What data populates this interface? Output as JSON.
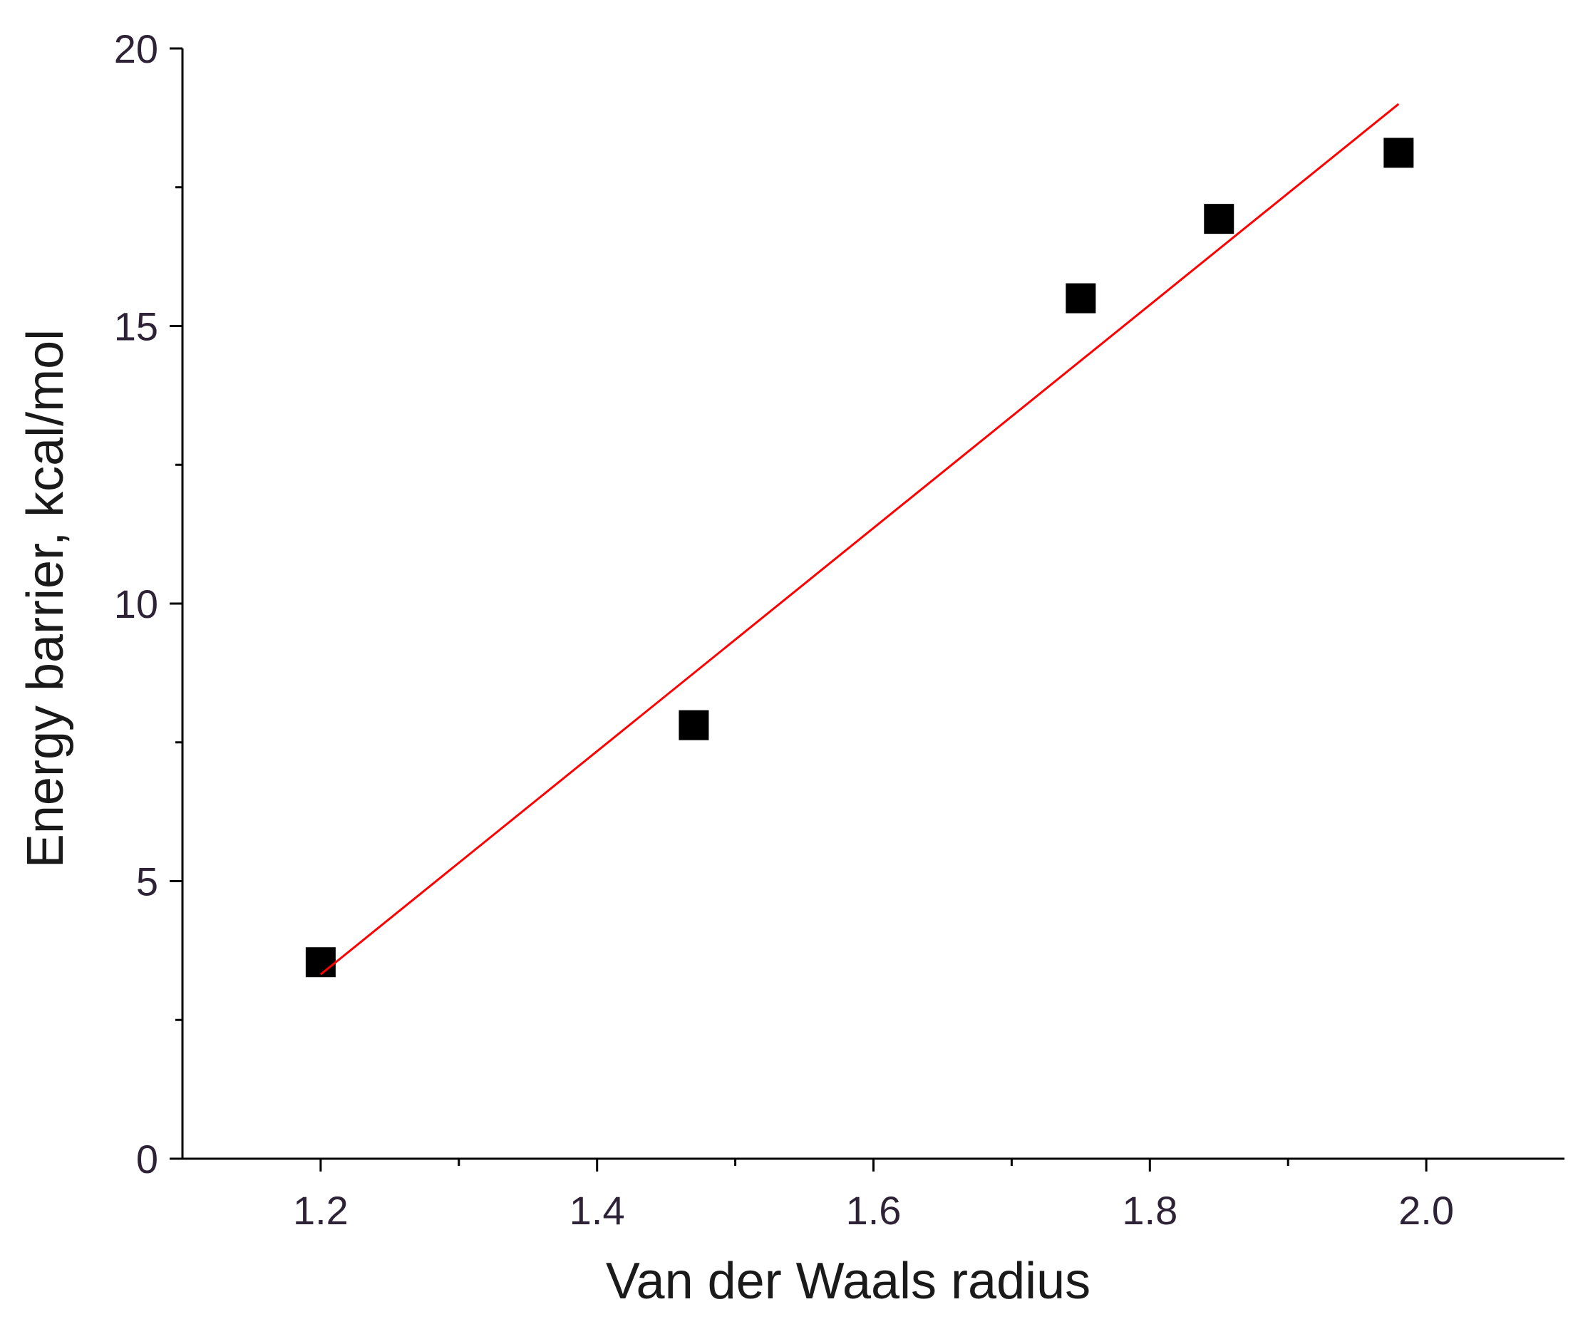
{
  "chart_data": {
    "type": "scatter",
    "x_label": "Van der Waals radius",
    "y_label": "Energy barrier, kcal/mol",
    "xlim": [
      1.1,
      2.1
    ],
    "xticks": [
      1.2,
      1.4,
      1.6,
      1.8,
      {
        "value": 2,
        "label": "2.0"
      }
    ],
    "ylim": [
      0,
      20
    ],
    "yticks": [
      0,
      5,
      10,
      15,
      20
    ],
    "series": [
      {
        "type": "scatter",
        "marker": "square",
        "color": "#000000",
        "x": [
          1.2,
          1.47,
          1.75,
          1.85,
          1.98
        ],
        "values": [
          3.54,
          7.81,
          15.5,
          16.93,
          18.12
        ]
      },
      {
        "type": "line",
        "color": "#ff0000",
        "x": [
          1.2,
          1.98
        ],
        "values": [
          3.32,
          19.0
        ]
      }
    ]
  }
}
